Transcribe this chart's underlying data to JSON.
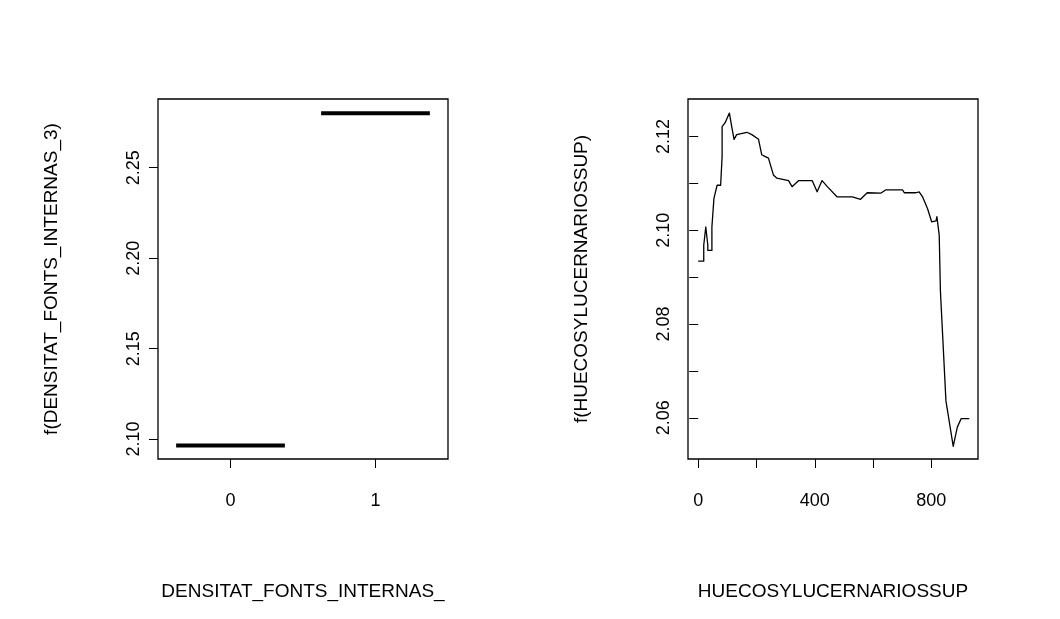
{
  "chart_data": [
    {
      "type": "box",
      "xlabel": "DENSITAT_FONTS_INTERNAS_",
      "ylabel": "f(DENSITAT_FONTS_INTERNAS_3)",
      "categories": [
        "0",
        "1"
      ],
      "color": "#000000",
      "boxes": [
        {
          "low": 2.0965,
          "q1": 2.0965,
          "median": 2.0965,
          "q3": 2.0965,
          "high": 2.0965
        },
        {
          "low": 2.2801,
          "q1": 2.2801,
          "median": 2.2801,
          "q3": 2.2801,
          "high": 2.2801
        }
      ],
      "ylim": [
        2.089,
        2.288
      ],
      "yticks": [
        {
          "value": 2.1,
          "label": "2.10"
        },
        {
          "value": 2.15,
          "label": "2.15"
        },
        {
          "value": 2.2,
          "label": "2.20"
        },
        {
          "value": 2.25,
          "label": "2.25"
        }
      ]
    },
    {
      "type": "line",
      "xlabel": "HUECOSYLUCERNARIOSSUP",
      "ylabel": "f(HUECOSYLUCERNARIOSSUP)",
      "color": "#000000",
      "x": [
        0,
        19,
        19,
        26,
        33,
        33,
        47,
        47,
        54,
        61,
        65,
        77,
        82,
        82,
        92,
        107,
        115,
        123,
        132,
        167,
        184,
        207,
        218,
        241,
        258,
        270,
        310,
        322,
        345,
        391,
        408,
        425,
        443,
        477,
        529,
        557,
        580,
        626,
        643,
        701,
        707,
        747,
        758,
        770,
        787,
        801,
        816,
        819,
        827,
        829,
        831,
        850,
        875,
        889,
        902,
        930
      ],
      "values": [
        2.0934,
        2.0934,
        2.0968,
        2.1007,
        2.0968,
        2.0957,
        2.0957,
        2.1007,
        2.1068,
        2.1086,
        2.1096,
        2.1096,
        2.1157,
        2.1221,
        2.1229,
        2.125,
        2.1221,
        2.1194,
        2.1204,
        2.1209,
        2.1204,
        2.1194,
        2.1161,
        2.1154,
        2.1118,
        2.1111,
        2.1106,
        2.1093,
        2.1106,
        2.1106,
        2.1082,
        2.1106,
        2.1093,
        2.1071,
        2.1071,
        2.1066,
        2.108,
        2.1079,
        2.1086,
        2.1086,
        2.108,
        2.108,
        2.1082,
        2.1071,
        2.1046,
        2.1018,
        2.102,
        2.1029,
        2.0989,
        2.0929,
        2.0871,
        2.0636,
        2.0539,
        2.058,
        2.0598,
        2.0598
      ],
      "xlim": [
        -35,
        960
      ],
      "xticks": [
        0,
        {
          "value": 200,
          "label": null
        },
        400,
        {
          "value": 600,
          "label": null
        },
        800
      ],
      "ylim": [
        2.0512,
        2.128
      ],
      "yticks": [
        {
          "value": 2.06,
          "label": "2.06"
        },
        {
          "value": 2.07,
          "label": null
        },
        {
          "value": 2.08,
          "label": "2.08"
        },
        {
          "value": 2.09,
          "label": null
        },
        {
          "value": 2.1,
          "label": "2.10"
        },
        {
          "value": 2.11,
          "label": null
        },
        {
          "value": 2.12,
          "label": "2.12"
        }
      ]
    }
  ]
}
